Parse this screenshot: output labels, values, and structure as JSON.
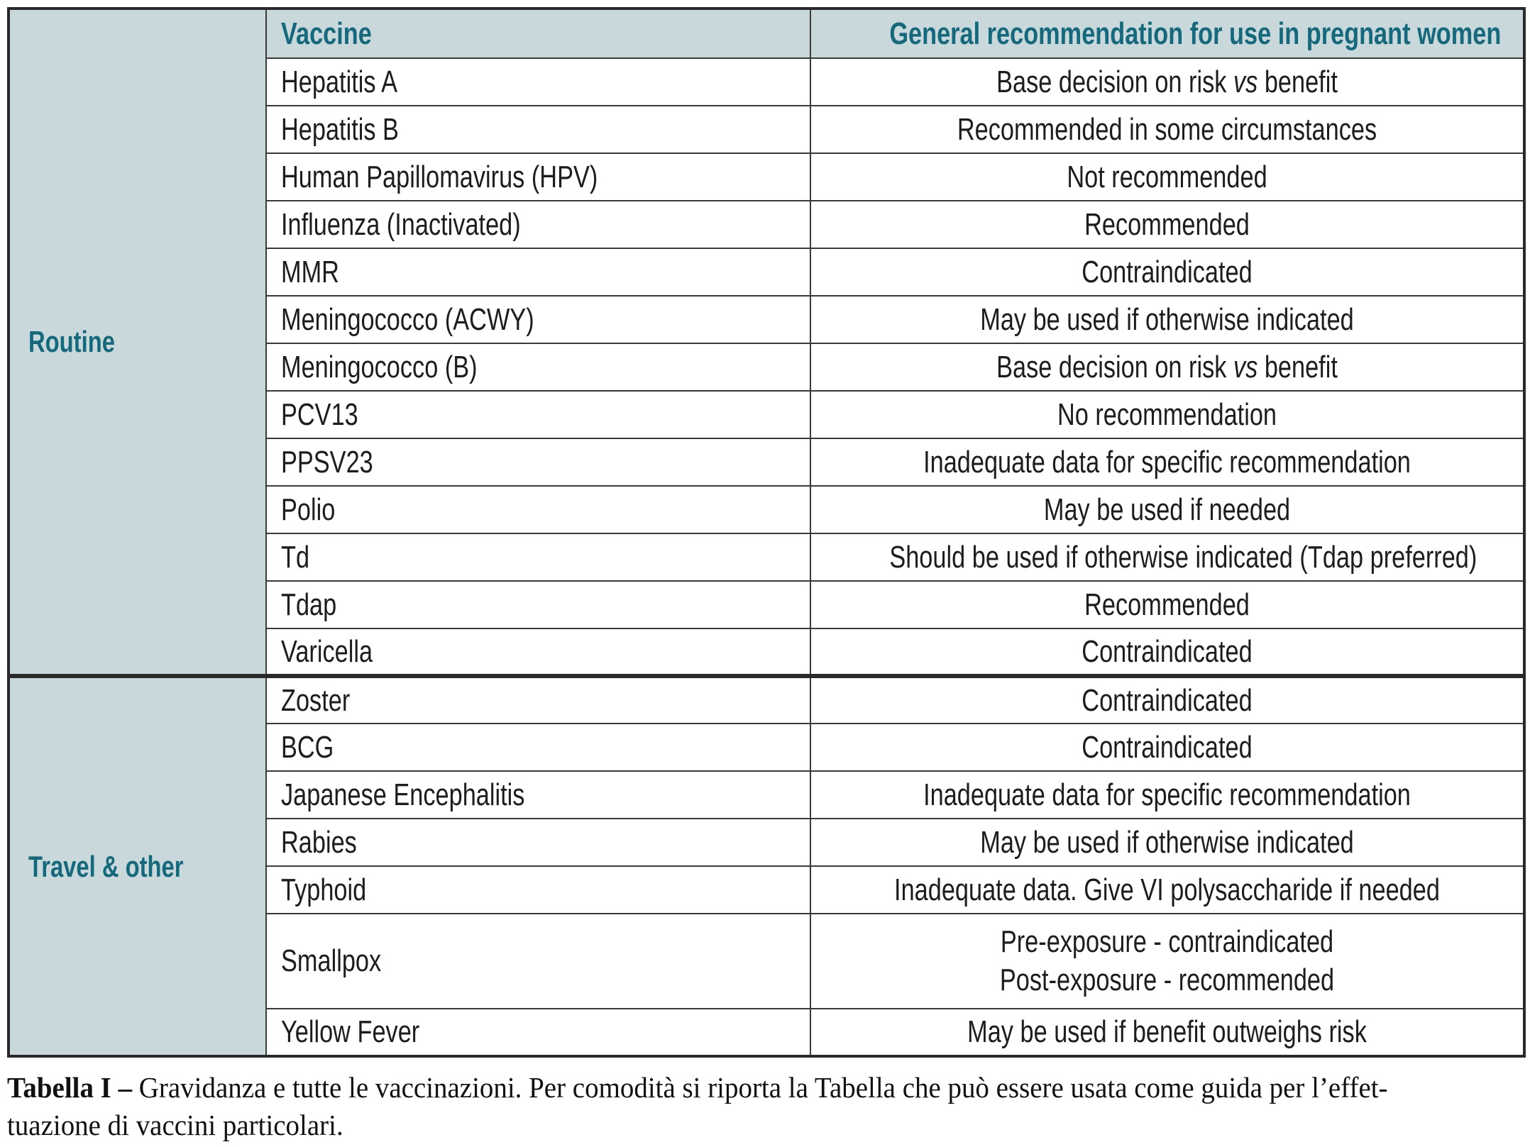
{
  "table": {
    "header": {
      "vaccine": "Vaccine",
      "recommendation": "General recommendation for use in pregnant women"
    },
    "sections": [
      {
        "label": "Routine",
        "rows": [
          {
            "vaccine": "Hepatitis A",
            "recommendation_lines": [
              [
                {
                  "t": "Base decision on risk "
                },
                {
                  "t": "vs",
                  "italic": true
                },
                {
                  "t": " benefit"
                }
              ]
            ]
          },
          {
            "vaccine": "Hepatitis B",
            "recommendation_lines": [
              [
                {
                  "t": "Recommended in some circumstances"
                }
              ]
            ]
          },
          {
            "vaccine": "Human Papillomavirus (HPV)",
            "recommendation_lines": [
              [
                {
                  "t": "Not recommended"
                }
              ]
            ]
          },
          {
            "vaccine": "Influenza (Inactivated)",
            "recommendation_lines": [
              [
                {
                  "t": "Recommended"
                }
              ]
            ]
          },
          {
            "vaccine": "MMR",
            "recommendation_lines": [
              [
                {
                  "t": "Contraindicated"
                }
              ]
            ]
          },
          {
            "vaccine": "Meningococco (ACWY)",
            "recommendation_lines": [
              [
                {
                  "t": "May be used if otherwise indicated"
                }
              ]
            ]
          },
          {
            "vaccine": "Meningococco (B)",
            "recommendation_lines": [
              [
                {
                  "t": "Base decision on risk "
                },
                {
                  "t": "vs",
                  "italic": true
                },
                {
                  "t": " benefit"
                }
              ]
            ]
          },
          {
            "vaccine": "PCV13",
            "recommendation_lines": [
              [
                {
                  "t": "No recommendation"
                }
              ]
            ]
          },
          {
            "vaccine": "PPSV23",
            "recommendation_lines": [
              [
                {
                  "t": "Inadequate data for specific recommendation"
                }
              ]
            ]
          },
          {
            "vaccine": "Polio",
            "recommendation_lines": [
              [
                {
                  "t": "May be used if needed"
                }
              ]
            ]
          },
          {
            "vaccine": "Td",
            "recommendation_lines": [
              [
                {
                  "t": "Should be used if otherwise indicated (Tdap preferred)"
                }
              ]
            ]
          },
          {
            "vaccine": "Tdap",
            "recommendation_lines": [
              [
                {
                  "t": "Recommended"
                }
              ]
            ]
          },
          {
            "vaccine": "Varicella",
            "recommendation_lines": [
              [
                {
                  "t": "Contraindicated"
                }
              ]
            ]
          }
        ]
      },
      {
        "label": "Travel & other",
        "rows": [
          {
            "vaccine": "Zoster",
            "recommendation_lines": [
              [
                {
                  "t": "Contraindicated"
                }
              ]
            ]
          },
          {
            "vaccine": "BCG",
            "recommendation_lines": [
              [
                {
                  "t": "Contraindicated"
                }
              ]
            ]
          },
          {
            "vaccine": "Japanese Encephalitis",
            "recommendation_lines": [
              [
                {
                  "t": "Inadequate data for specific recommendation"
                }
              ]
            ]
          },
          {
            "vaccine": "Rabies",
            "recommendation_lines": [
              [
                {
                  "t": "May be used if otherwise indicated"
                }
              ]
            ]
          },
          {
            "vaccine": "Typhoid",
            "recommendation_lines": [
              [
                {
                  "t": "Inadequate data. Give VI polysaccharide if needed"
                }
              ]
            ]
          },
          {
            "vaccine": "Smallpox",
            "tall": true,
            "recommendation_lines": [
              [
                {
                  "t": "Pre-exposure - contraindicated"
                }
              ],
              [
                {
                  "t": "Post-exposure - recommended"
                }
              ]
            ]
          },
          {
            "vaccine": "Yellow Fever",
            "recommendation_lines": [
              [
                {
                  "t": "May be used if benefit outweighs risk"
                }
              ]
            ]
          }
        ]
      }
    ]
  },
  "caption": {
    "label": "Tabella I –",
    "line1_rest": " Gravidanza e tutte le vaccinazioni. Per comodità si riporta la Tabella che può essere usata come guida per l’effet-",
    "line2": "tuazione di vaccini particolari."
  },
  "colors": {
    "teal": "#14697c",
    "section_bg": "#c9d8da",
    "border": "#3a3a3a",
    "border_heavy": "#2a2a2a",
    "text": "#1d1d1d"
  }
}
